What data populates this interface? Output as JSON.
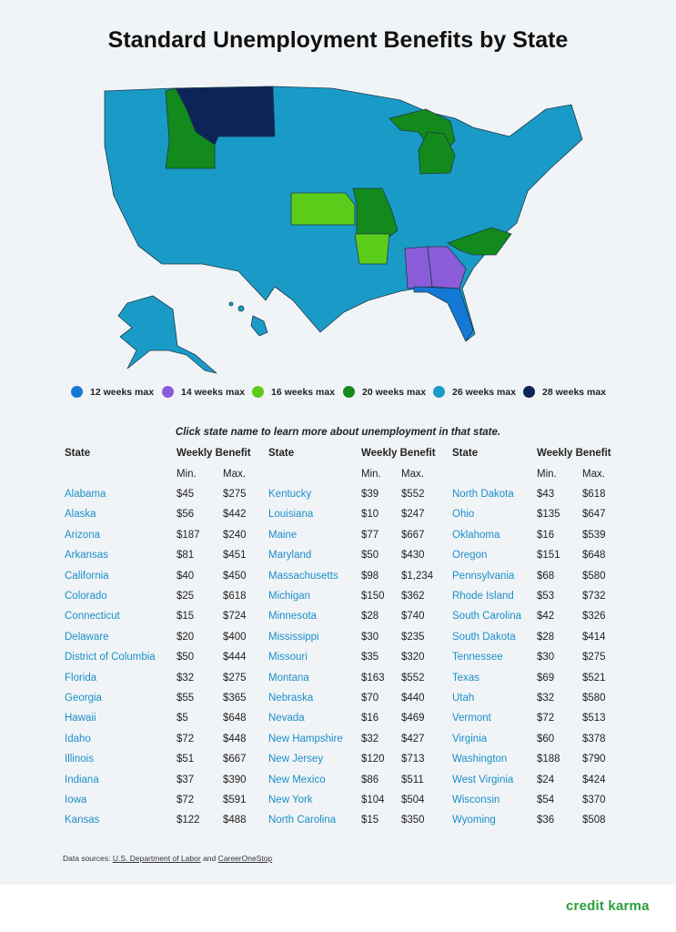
{
  "header": {
    "title": "Standard Unemployment Benefits by State"
  },
  "legend": [
    {
      "label": "12 weeks max",
      "color": "#1479d6"
    },
    {
      "label": "14 weeks max",
      "color": "#8a5cd8"
    },
    {
      "label": "16 weeks max",
      "color": "#5ccc1a"
    },
    {
      "label": "20 weeks max",
      "color": "#138a1c"
    },
    {
      "label": "26 weeks max",
      "color": "#1a9bc7"
    },
    {
      "label": "28 weeks max",
      "color": "#0c2457"
    }
  ],
  "note": "Click state name to learn more about unemployment in that state.",
  "table": {
    "headers": [
      "State",
      "Weekly Benefit"
    ],
    "subheaders": [
      "Min.",
      "Max."
    ],
    "groups": [
      [
        [
          "Alabama",
          "$45",
          "$275"
        ],
        [
          "Alaska",
          "$56",
          "$442"
        ],
        [
          "Arizona",
          "$187",
          "$240"
        ],
        [
          "Arkansas",
          "$81",
          "$451"
        ],
        [
          "California",
          "$40",
          "$450"
        ],
        [
          "Colorado",
          "$25",
          "$618"
        ],
        [
          "Connecticut",
          "$15",
          "$724"
        ],
        [
          "Delaware",
          "$20",
          "$400"
        ],
        [
          "District of Columbia",
          "$50",
          "$444"
        ],
        [
          "Florida",
          "$32",
          "$275"
        ],
        [
          "Georgia",
          "$55",
          "$365"
        ],
        [
          "Hawaii",
          "$5",
          "$648"
        ],
        [
          "Idaho",
          "$72",
          "$448"
        ],
        [
          "Illinois",
          "$51",
          "$667"
        ],
        [
          "Indiana",
          "$37",
          "$390"
        ],
        [
          "Iowa",
          "$72",
          "$591"
        ],
        [
          "Kansas",
          "$122",
          "$488"
        ]
      ],
      [
        [
          "Kentucky",
          "$39",
          "$552"
        ],
        [
          "Louisiana",
          "$10",
          "$247"
        ],
        [
          "Maine",
          "$77",
          "$667"
        ],
        [
          "Maryland",
          "$50",
          "$430"
        ],
        [
          "Massachusetts",
          "$98",
          "$1,234"
        ],
        [
          "Michigan",
          "$150",
          "$362"
        ],
        [
          "Minnesota",
          "$28",
          "$740"
        ],
        [
          "Mississippi",
          "$30",
          "$235"
        ],
        [
          "Missouri",
          "$35",
          "$320"
        ],
        [
          "Montana",
          "$163",
          "$552"
        ],
        [
          "Nebraska",
          "$70",
          "$440"
        ],
        [
          "Nevada",
          "$16",
          "$469"
        ],
        [
          "New Hampshire",
          "$32",
          "$427"
        ],
        [
          "New Jersey",
          "$120",
          "$713"
        ],
        [
          "New Mexico",
          "$86",
          "$511"
        ],
        [
          "New York",
          "$104",
          "$504"
        ],
        [
          "North Carolina",
          "$15",
          "$350"
        ]
      ],
      [
        [
          "North Dakota",
          "$43",
          "$618"
        ],
        [
          "Ohio",
          "$135",
          "$647"
        ],
        [
          "Oklahoma",
          "$16",
          "$539"
        ],
        [
          "Oregon",
          "$151",
          "$648"
        ],
        [
          "Pennsylvania",
          "$68",
          "$580"
        ],
        [
          "Rhode Island",
          "$53",
          "$732"
        ],
        [
          "South Carolina",
          "$42",
          "$326"
        ],
        [
          "South Dakota",
          "$28",
          "$414"
        ],
        [
          "Tennessee",
          "$30",
          "$275"
        ],
        [
          "Texas",
          "$69",
          "$521"
        ],
        [
          "Utah",
          "$32",
          "$580"
        ],
        [
          "Vermont",
          "$72",
          "$513"
        ],
        [
          "Virginia",
          "$60",
          "$378"
        ],
        [
          "Washington",
          "$188",
          "$790"
        ],
        [
          "West Virginia",
          "$24",
          "$424"
        ],
        [
          "Wisconsin",
          "$54",
          "$370"
        ],
        [
          "Wyoming",
          "$36",
          "$508"
        ]
      ]
    ]
  },
  "footer": {
    "sources_label": "Data sources:",
    "source_1": "U.S. Department of Labor",
    "joiner": "and",
    "source_2": "CareerOneStop",
    "logo": "credit karma"
  }
}
